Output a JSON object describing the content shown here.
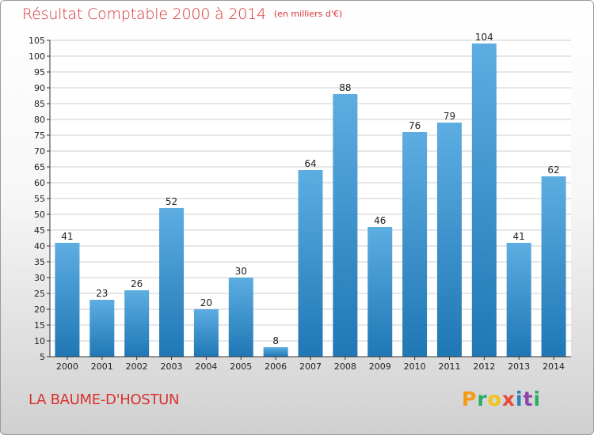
{
  "header": {
    "title": "Résultat Comptable 2000 à 2014",
    "subtitle": "(en milliers d'€)"
  },
  "footer": {
    "commune": "LA BAUME-D'HOSTUN",
    "logo_text": "Proxiti",
    "logo_colors": [
      "#f39c12",
      "#27ae60",
      "#f1c40f",
      "#e74c3c",
      "#2980b9",
      "#8e44ad",
      "#27ae60"
    ]
  },
  "colors": {
    "title": "#d93232",
    "bar_light": "#5dade2",
    "bar_dark": "#1f77b4",
    "grid": "#cccccc"
  },
  "chart_data": {
    "type": "bar",
    "title": "Résultat Comptable 2000 à 2014",
    "subtitle": "(en milliers d'€)",
    "categories": [
      "2000",
      "2001",
      "2002",
      "2003",
      "2004",
      "2005",
      "2006",
      "2007",
      "2008",
      "2009",
      "2010",
      "2011",
      "2012",
      "2013",
      "2014"
    ],
    "values": [
      41,
      23,
      26,
      52,
      20,
      30,
      8,
      64,
      88,
      46,
      76,
      79,
      104,
      41,
      62
    ],
    "ylim": [
      5,
      105
    ],
    "yticks": [
      5,
      10,
      15,
      20,
      25,
      30,
      35,
      40,
      45,
      50,
      55,
      60,
      65,
      70,
      75,
      80,
      85,
      90,
      95,
      100,
      105
    ],
    "grid": true,
    "data_labels": true
  }
}
